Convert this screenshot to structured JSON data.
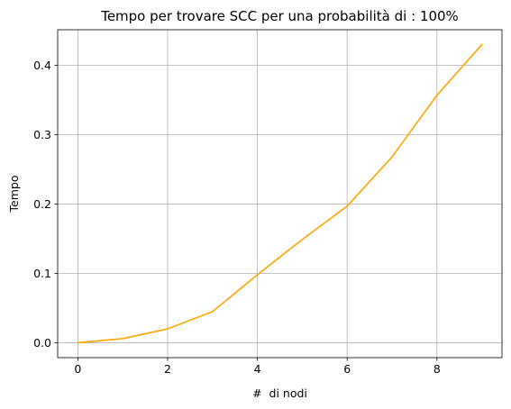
{
  "chart_data": {
    "type": "line",
    "title": "Tempo per trovare SCC per una probabilità di : 100%",
    "xlabel": "#  di nodi",
    "ylabel": "Tempo",
    "xlim": [
      -0.45,
      9.45
    ],
    "ylim": [
      -0.0215,
      0.4515
    ],
    "xticks": [
      0,
      2,
      4,
      6,
      8
    ],
    "xtick_labels": [
      "0",
      "2",
      "4",
      "6",
      "8"
    ],
    "yticks": [
      0.0,
      0.1,
      0.2,
      0.3,
      0.4
    ],
    "ytick_labels": [
      "0.0",
      "0.1",
      "0.2",
      "0.3",
      "0.4"
    ],
    "grid": true,
    "series": [
      {
        "color": "#ffa500",
        "x": [
          0,
          1,
          2,
          3,
          4,
          5,
          6,
          7,
          8,
          9
        ],
        "y": [
          0.0,
          0.006,
          0.02,
          0.045,
          0.098,
          0.149,
          0.197,
          0.268,
          0.357,
          0.43
        ]
      }
    ]
  }
}
